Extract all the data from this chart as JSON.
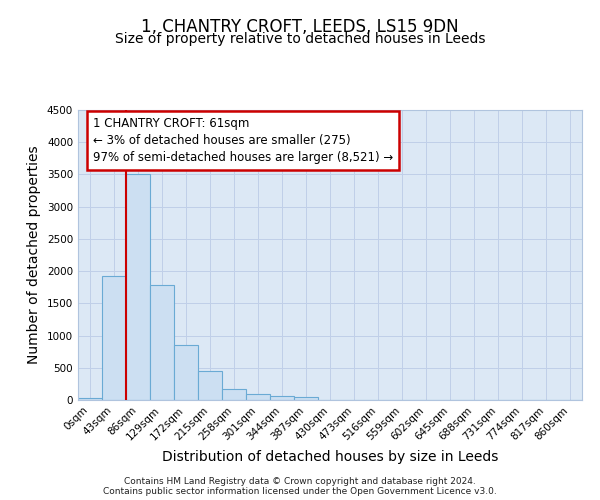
{
  "title_line1": "1, CHANTRY CROFT, LEEDS, LS15 9DN",
  "title_line2": "Size of property relative to detached houses in Leeds",
  "xlabel": "Distribution of detached houses by size in Leeds",
  "ylabel": "Number of detached properties",
  "categories": [
    "0sqm",
    "43sqm",
    "86sqm",
    "129sqm",
    "172sqm",
    "215sqm",
    "258sqm",
    "301sqm",
    "344sqm",
    "387sqm",
    "430sqm",
    "473sqm",
    "516sqm",
    "559sqm",
    "602sqm",
    "645sqm",
    "688sqm",
    "731sqm",
    "774sqm",
    "817sqm",
    "860sqm"
  ],
  "values": [
    30,
    1920,
    3500,
    1780,
    850,
    450,
    175,
    95,
    60,
    45,
    0,
    0,
    0,
    0,
    0,
    0,
    0,
    0,
    0,
    0,
    0
  ],
  "bar_color": "#ccdff2",
  "bar_edge_color": "#6aaad4",
  "grid_color": "#c0cfe8",
  "background_color": "#dce8f5",
  "vline_x": 1.5,
  "vline_color": "#cc0000",
  "annotation_text": "1 CHANTRY CROFT: 61sqm\n← 3% of detached houses are smaller (275)\n97% of semi-detached houses are larger (8,521) →",
  "annotation_box_color": "#ffffff",
  "annotation_box_edge": "#cc0000",
  "ylim": [
    0,
    4500
  ],
  "yticks": [
    0,
    500,
    1000,
    1500,
    2000,
    2500,
    3000,
    3500,
    4000,
    4500
  ],
  "footer_line1": "Contains HM Land Registry data © Crown copyright and database right 2024.",
  "footer_line2": "Contains public sector information licensed under the Open Government Licence v3.0.",
  "title_fontsize": 12,
  "subtitle_fontsize": 10,
  "tick_fontsize": 7.5,
  "label_fontsize": 10,
  "annot_fontsize": 8.5
}
